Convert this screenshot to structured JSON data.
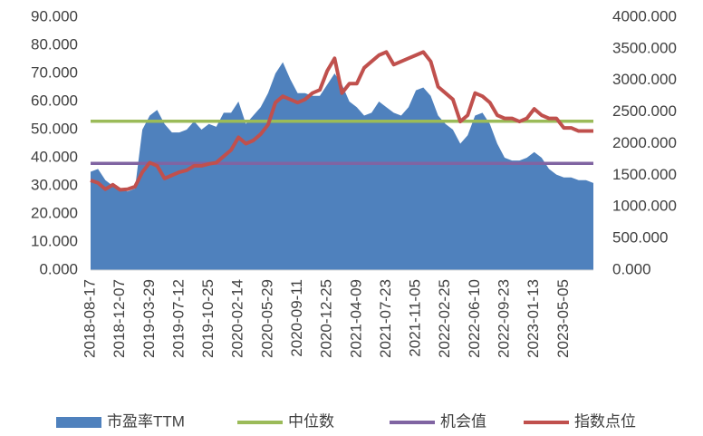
{
  "chart_data": {
    "type": "combo",
    "categories": [
      "2018-08-17",
      null,
      null,
      null,
      "2018-12-07",
      null,
      null,
      null,
      "2019-03-29",
      null,
      null,
      null,
      "2019-07-12",
      null,
      null,
      null,
      "2019-10-25",
      null,
      null,
      null,
      "2020-02-14",
      null,
      null,
      null,
      "2020-05-29",
      null,
      null,
      null,
      "2020-09-11",
      null,
      null,
      null,
      "2020-12-25",
      null,
      null,
      null,
      "2021-04-09",
      null,
      null,
      null,
      "2021-07-23",
      null,
      null,
      null,
      "2021-11-05",
      null,
      null,
      null,
      "2022-02-25",
      null,
      null,
      null,
      "2022-06-10",
      null,
      null,
      null,
      "2022-09-23",
      null,
      null,
      null,
      "2023-01-13",
      null,
      null,
      null,
      "2023-05-05",
      null,
      null,
      null,
      null
    ],
    "series": [
      {
        "name": "市盈率TTM",
        "type": "area",
        "color": "#4f81bd",
        "values": [
          35,
          36,
          32,
          30,
          29,
          28,
          29,
          50,
          55,
          57,
          52,
          49,
          49,
          50,
          53,
          50,
          52,
          51,
          56,
          56,
          60,
          52,
          55,
          58,
          63,
          70,
          74,
          68,
          63,
          63,
          62,
          62,
          66,
          70,
          66,
          60,
          58,
          55,
          56,
          60,
          58,
          56,
          55,
          58,
          64,
          65,
          62,
          55,
          52,
          50,
          45,
          48,
          55,
          56,
          52,
          45,
          40,
          39,
          39,
          40,
          42,
          40,
          36,
          34,
          33,
          33,
          32,
          32,
          31
        ]
      },
      {
        "name": "中位数",
        "type": "line",
        "color": "#9bbb59",
        "values": [
          53,
          53,
          53,
          53,
          53,
          53,
          53,
          53,
          53,
          53,
          53,
          53,
          53,
          53,
          53,
          53,
          53,
          53,
          53,
          53,
          53,
          53,
          53,
          53,
          53,
          53,
          53,
          53,
          53,
          53,
          53,
          53,
          53,
          53,
          53,
          53,
          53,
          53,
          53,
          53,
          53,
          53,
          53,
          53,
          53,
          53,
          53,
          53,
          53,
          53,
          53,
          53,
          53,
          53,
          53,
          53,
          53,
          53,
          53,
          53,
          53,
          53,
          53,
          53,
          53,
          53,
          53,
          53,
          53
        ]
      },
      {
        "name": "机会值",
        "type": "line",
        "color": "#8064a2",
        "values": [
          38,
          38,
          38,
          38,
          38,
          38,
          38,
          38,
          38,
          38,
          38,
          38,
          38,
          38,
          38,
          38,
          38,
          38,
          38,
          38,
          38,
          38,
          38,
          38,
          38,
          38,
          38,
          38,
          38,
          38,
          38,
          38,
          38,
          38,
          38,
          38,
          38,
          38,
          38,
          38,
          38,
          38,
          38,
          38,
          38,
          38,
          38,
          38,
          38,
          38,
          38,
          38,
          38,
          38,
          38,
          38,
          38,
          38,
          38,
          38,
          38,
          38,
          38,
          38,
          38,
          38,
          38,
          38,
          38
        ]
      },
      {
        "name": "指数点位",
        "type": "line",
        "axis": "y2",
        "color": "#c0504d",
        "values": [
          1420,
          1380,
          1280,
          1350,
          1270,
          1280,
          1320,
          1550,
          1700,
          1650,
          1450,
          1500,
          1550,
          1580,
          1650,
          1650,
          1680,
          1700,
          1800,
          1900,
          2100,
          2000,
          2050,
          2150,
          2300,
          2650,
          2750,
          2700,
          2650,
          2700,
          2800,
          2850,
          3150,
          3350,
          2800,
          2950,
          2950,
          3200,
          3300,
          3400,
          3450,
          3250,
          3300,
          3350,
          3400,
          3450,
          3300,
          2900,
          2800,
          2700,
          2350,
          2450,
          2800,
          2750,
          2650,
          2450,
          2400,
          2400,
          2350,
          2400,
          2550,
          2450,
          2400,
          2400,
          2250,
          2250,
          2200,
          2200,
          2200
        ]
      }
    ],
    "ylim": [
      0,
      90
    ],
    "yticks": [
      {
        "value": 0,
        "label": "0.000"
      },
      {
        "value": 10,
        "label": "10.000"
      },
      {
        "value": 20,
        "label": "20.000"
      },
      {
        "value": 30,
        "label": "30.000"
      },
      {
        "value": 40,
        "label": "40.000"
      },
      {
        "value": 50,
        "label": "50.000"
      },
      {
        "value": 60,
        "label": "60.000"
      },
      {
        "value": 70,
        "label": "70.000"
      },
      {
        "value": 80,
        "label": "80.000"
      },
      {
        "value": 90,
        "label": "90.000"
      }
    ],
    "y2lim": [
      0,
      4000
    ],
    "y2ticks": [
      {
        "value": 0,
        "label": "0.000"
      },
      {
        "value": 500,
        "label": "500.000"
      },
      {
        "value": 1000,
        "label": "1000.000"
      },
      {
        "value": 1500,
        "label": "1500.000"
      },
      {
        "value": 2000,
        "label": "2000.000"
      },
      {
        "value": 2500,
        "label": "2500.000"
      },
      {
        "value": 3000,
        "label": "3000.000"
      },
      {
        "value": 3500,
        "label": "3500.000"
      },
      {
        "value": 4000,
        "label": "4000.000"
      }
    ],
    "legend": "bottom"
  }
}
